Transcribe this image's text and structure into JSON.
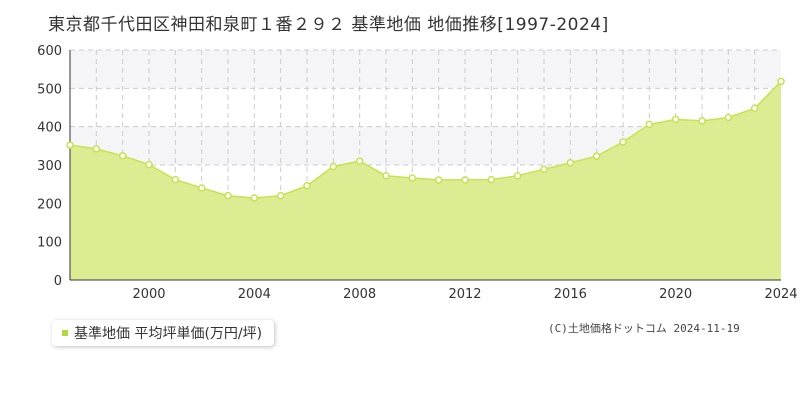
{
  "title": "東京都千代田区神田和泉町１番２９２ 基準地価 地価推移[1997-2024]",
  "legend": {
    "label": "基準地価 平均坪単価(万円/坪)"
  },
  "copyright": "(C)土地価格ドットコム 2024-11-19",
  "colors": {
    "area_fill": "#dcec93",
    "line": "#c7e24f",
    "point_fill": "#ffffff",
    "grid": "#cccccc",
    "band": "#f5f5f7"
  },
  "chart_data": {
    "type": "area",
    "title": "東京都千代田区神田和泉町１番２９２ 基準地価 地価推移[1997-2024]",
    "xlabel": "",
    "ylabel": "",
    "xlim": [
      1997,
      2024
    ],
    "ylim": [
      0,
      600
    ],
    "y_ticks": [
      0,
      100,
      200,
      300,
      400,
      500,
      600
    ],
    "x_ticks": [
      2000,
      2004,
      2008,
      2012,
      2016,
      2020,
      2024
    ],
    "grid": true,
    "legend_position": "bottom-left",
    "series": [
      {
        "name": "基準地価 平均坪単価(万円/坪)",
        "x": [
          1997,
          1998,
          1999,
          2000,
          2001,
          2002,
          2003,
          2004,
          2005,
          2006,
          2007,
          2008,
          2009,
          2010,
          2011,
          2012,
          2013,
          2014,
          2015,
          2016,
          2017,
          2018,
          2019,
          2020,
          2021,
          2022,
          2023,
          2024
        ],
        "values": [
          352,
          342,
          324,
          301,
          262,
          240,
          220,
          214,
          220,
          246,
          296,
          310,
          272,
          266,
          261,
          261,
          262,
          272,
          289,
          306,
          323,
          360,
          406,
          419,
          415,
          424,
          448,
          518
        ]
      }
    ]
  }
}
